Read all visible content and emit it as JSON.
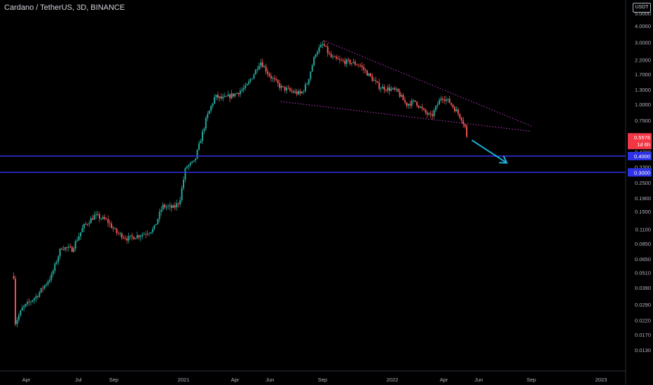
{
  "header": {
    "title": "Cardano / TetherUS, 3D, BINANCE",
    "currency": "USDT"
  },
  "chart_data": {
    "type": "candlestick",
    "symbol": "Cardano / TetherUS",
    "interval": "3D",
    "exchange": "BINANCE",
    "y_scale": "log",
    "y_ticks": [
      "5.0000",
      "4.0000",
      "3.0000",
      "2.2000",
      "1.7000",
      "1.3000",
      "1.0000",
      "0.7500",
      "0.5800",
      "0.4300",
      "0.3300",
      "0.2500",
      "0.1900",
      "0.1500",
      "0.1100",
      "0.0850",
      "0.0650",
      "0.0510",
      "0.0390",
      "0.0290",
      "0.0220",
      "0.0170",
      "0.0130"
    ],
    "x_ticks": [
      {
        "label": "Apr",
        "date": "2020-04-01"
      },
      {
        "label": "Jul",
        "date": "2020-07-01"
      },
      {
        "label": "Sep",
        "date": "2020-09-01"
      },
      {
        "label": "2021",
        "date": "2021-01-01"
      },
      {
        "label": "Apr",
        "date": "2021-04-01"
      },
      {
        "label": "Jun",
        "date": "2021-06-01"
      },
      {
        "label": "Sep",
        "date": "2021-09-01"
      },
      {
        "label": "2022",
        "date": "2022-01-01"
      },
      {
        "label": "Apr",
        "date": "2022-04-01"
      },
      {
        "label": "Jun",
        "date": "2022-06-01"
      },
      {
        "label": "Sep",
        "date": "2022-09-01"
      },
      {
        "label": "2023",
        "date": "2023-01-01"
      }
    ],
    "price_path": [
      [
        "2020-03-10",
        0.048
      ],
      [
        "2020-03-13",
        0.021
      ],
      [
        "2020-03-25",
        0.027
      ],
      [
        "2020-04-20",
        0.034
      ],
      [
        "2020-05-15",
        0.048
      ],
      [
        "2020-06-01",
        0.08
      ],
      [
        "2020-06-20",
        0.077
      ],
      [
        "2020-07-10",
        0.115
      ],
      [
        "2020-07-30",
        0.14
      ],
      [
        "2020-08-20",
        0.128
      ],
      [
        "2020-09-05",
        0.104
      ],
      [
        "2020-09-25",
        0.093
      ],
      [
        "2020-10-20",
        0.1
      ],
      [
        "2020-11-10",
        0.11
      ],
      [
        "2020-11-25",
        0.165
      ],
      [
        "2020-12-15",
        0.16
      ],
      [
        "2020-12-25",
        0.18
      ],
      [
        "2021-01-05",
        0.33
      ],
      [
        "2021-01-20",
        0.36
      ],
      [
        "2021-02-10",
        0.78
      ],
      [
        "2021-02-25",
        1.15
      ],
      [
        "2021-03-10",
        1.1
      ],
      [
        "2021-04-01",
        1.2
      ],
      [
        "2021-04-20",
        1.35
      ],
      [
        "2021-05-05",
        1.75
      ],
      [
        "2021-05-15",
        2.15
      ],
      [
        "2021-06-01",
        1.65
      ],
      [
        "2021-06-20",
        1.35
      ],
      [
        "2021-07-10",
        1.25
      ],
      [
        "2021-07-25",
        1.2
      ],
      [
        "2021-08-05",
        1.45
      ],
      [
        "2021-08-20",
        2.5
      ],
      [
        "2021-09-02",
        2.9
      ],
      [
        "2021-09-15",
        2.3
      ],
      [
        "2021-10-01",
        2.15
      ],
      [
        "2021-10-20",
        2.1
      ],
      [
        "2021-11-05",
        2.0
      ],
      [
        "2021-11-25",
        1.6
      ],
      [
        "2021-12-10",
        1.35
      ],
      [
        "2021-12-31",
        1.3
      ],
      [
        "2022-01-10",
        1.25
      ],
      [
        "2022-01-25",
        1.0
      ],
      [
        "2022-02-10",
        1.05
      ],
      [
        "2022-02-25",
        0.88
      ],
      [
        "2022-03-10",
        0.8
      ],
      [
        "2022-03-28",
        1.15
      ],
      [
        "2022-04-10",
        1.05
      ],
      [
        "2022-04-22",
        0.9
      ],
      [
        "2022-05-02",
        0.78
      ],
      [
        "2022-05-08",
        0.67
      ],
      [
        "2022-05-11",
        0.5576
      ]
    ],
    "last_price": {
      "value": 0.5576,
      "label": "0.5576",
      "countdown": "1d 6h",
      "color": "#f23645"
    },
    "horizontal_lines": [
      {
        "value": 0.4,
        "label": "0.4000",
        "color": "#2d32e6"
      },
      {
        "value": 0.3,
        "label": "0.3000",
        "color": "#2d32e6"
      }
    ],
    "trendlines": [
      {
        "color": "#c03bc9",
        "style": "dotted",
        "from": {
          "date": "2021-09-02",
          "price": 3.1
        },
        "to": {
          "date": "2022-09-01",
          "price": 0.68
        }
      },
      {
        "color": "#c03bc9",
        "style": "dotted",
        "from": {
          "date": "2021-06-20",
          "price": 1.05
        },
        "to": {
          "date": "2022-09-01",
          "price": 0.62
        }
      }
    ],
    "arrow": {
      "color": "#1eb2df",
      "from": {
        "date": "2022-05-20",
        "price": 0.53
      },
      "to": {
        "date": "2022-07-20",
        "price": 0.355
      }
    },
    "colors": {
      "up": "#26a69a",
      "down": "#ef5350",
      "background": "#000000",
      "text": "#b2b5be"
    }
  }
}
